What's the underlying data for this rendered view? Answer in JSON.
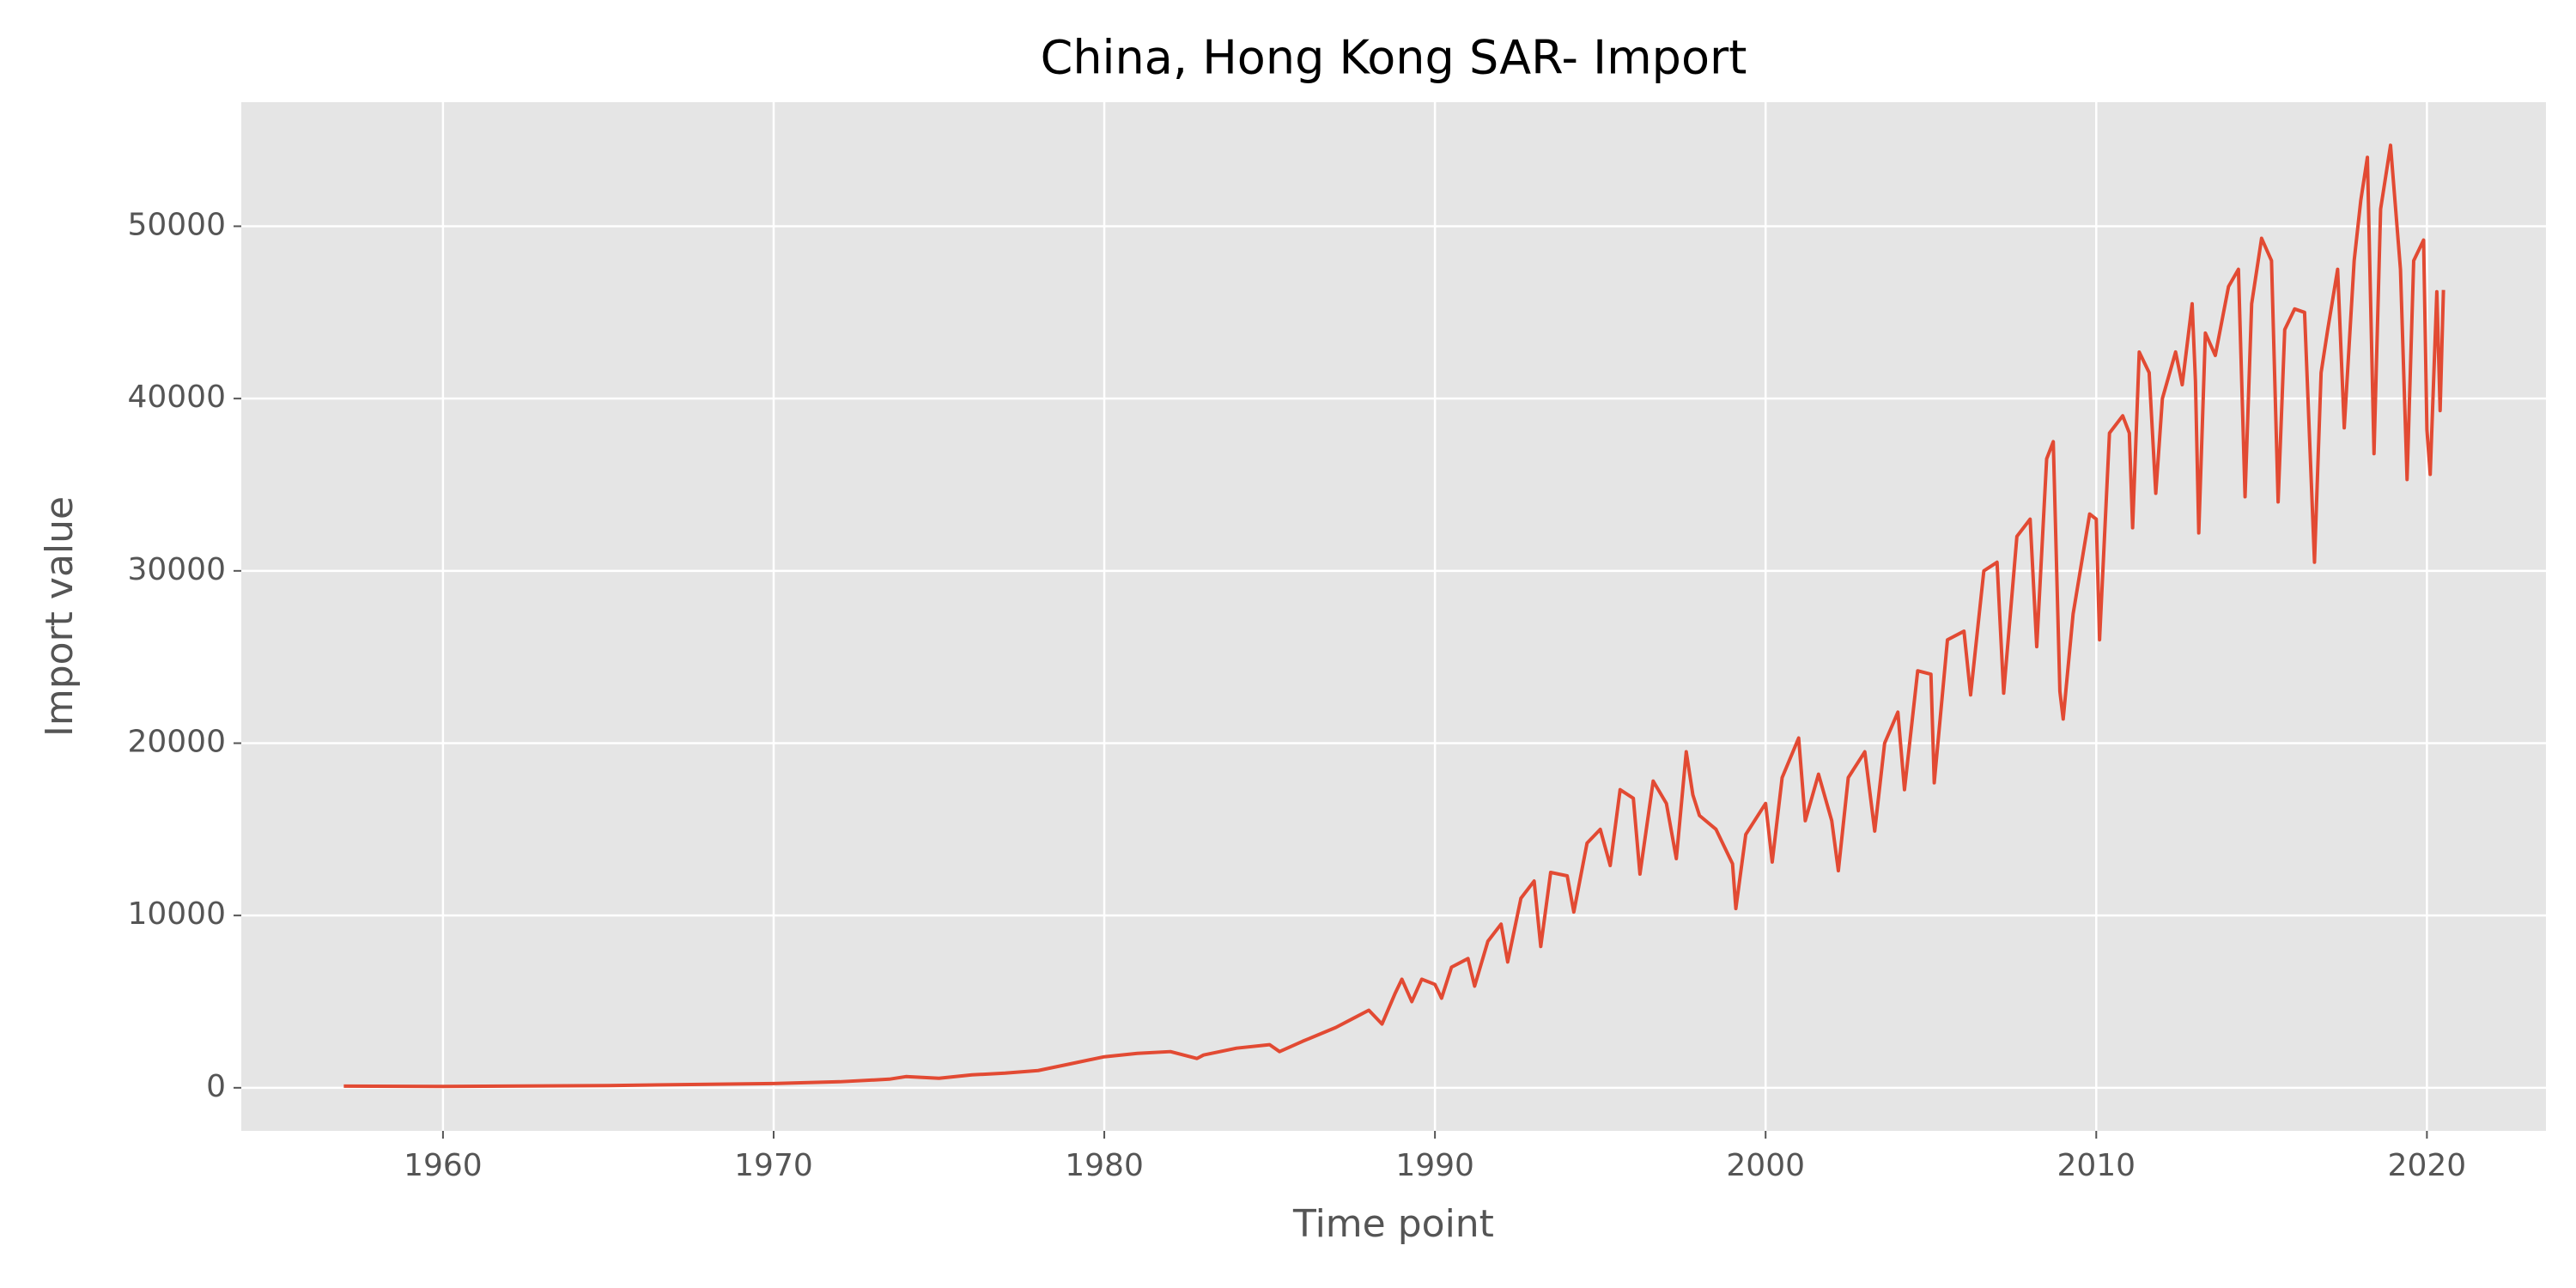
{
  "chart_data": {
    "type": "line",
    "title": "China, Hong Kong SAR- Import",
    "x_label": "Time point",
    "y_label": "Import value",
    "x": [
      1957,
      1960,
      1965,
      1970,
      1972,
      1973.5,
      1974,
      1975,
      1976,
      1977,
      1978,
      1979,
      1980,
      1981,
      1982,
      1982.8,
      1983,
      1984,
      1985,
      1985.3,
      1986,
      1987,
      1987.5,
      1988,
      1988.4,
      1988.8,
      1989,
      1989.3,
      1989.6,
      1990,
      1990.2,
      1990.5,
      1991,
      1991.2,
      1991.6,
      1992,
      1992.2,
      1992.6,
      1993,
      1993.2,
      1993.5,
      1994,
      1994.2,
      1994.6,
      1995,
      1995.3,
      1995.6,
      1996,
      1996.2,
      1996.6,
      1997,
      1997.3,
      1997.6,
      1997.8,
      1998,
      1998.5,
      1999,
      1999.1,
      1999.4,
      2000,
      2000.2,
      2000.5,
      2001,
      2001.2,
      2001.6,
      2002,
      2002.2,
      2002.5,
      2003,
      2003.3,
      2003.6,
      2004,
      2004.2,
      2004.6,
      2005,
      2005.1,
      2005.5,
      2006,
      2006.2,
      2006.6,
      2007,
      2007.2,
      2007.6,
      2008,
      2008.2,
      2008.5,
      2008.7,
      2008.9,
      2009,
      2009.3,
      2009.8,
      2010,
      2010.1,
      2010.4,
      2010.8,
      2011,
      2011.1,
      2011.3,
      2011.6,
      2011.8,
      2012,
      2012.4,
      2012.6,
      2012.9,
      2013,
      2013.1,
      2013.3,
      2013.6,
      2014,
      2014.3,
      2014.5,
      2014.7,
      2015,
      2015.3,
      2015.5,
      2015.7,
      2016,
      2016.3,
      2016.6,
      2016.8,
      2017,
      2017.3,
      2017.5,
      2017.8,
      2018,
      2018.2,
      2018.4,
      2018.6,
      2018.9,
      2019.2,
      2019.4,
      2019.6,
      2019.9,
      2020,
      2020.1,
      2020.3,
      2020.4,
      2020.5
    ],
    "series": [
      {
        "name": "Import",
        "color": "#e24a33",
        "values": [
          100,
          80,
          130,
          250,
          350,
          500,
          650,
          550,
          750,
          850,
          1000,
          1400,
          1800,
          2000,
          2100,
          1700,
          1900,
          2300,
          2500,
          2100,
          2700,
          3500,
          4000,
          4500,
          3700,
          5500,
          6300,
          5000,
          6300,
          6000,
          5200,
          7000,
          7500,
          5900,
          8500,
          9500,
          7300,
          11000,
          12000,
          8200,
          12500,
          12300,
          10200,
          14200,
          15000,
          12900,
          17300,
          16800,
          12400,
          17800,
          16500,
          13300,
          19500,
          17000,
          15800,
          15000,
          13000,
          10400,
          14700,
          16500,
          13100,
          18000,
          20300,
          15500,
          18200,
          15500,
          12600,
          18000,
          19500,
          14900,
          20000,
          21800,
          17300,
          24200,
          24000,
          17700,
          26000,
          26500,
          22800,
          30000,
          30500,
          22900,
          32000,
          33000,
          25600,
          36500,
          37500,
          23000,
          21400,
          27500,
          33300,
          33000,
          26000,
          38000,
          39000,
          38000,
          32500,
          42700,
          41500,
          34500,
          40000,
          42700,
          40800,
          45500,
          41000,
          32200,
          43800,
          42500,
          46500,
          47500,
          34300,
          45500,
          49300,
          48000,
          34000,
          44000,
          45200,
          45000,
          30500,
          41500,
          44000,
          47500,
          38300,
          48000,
          51500,
          54000,
          36800,
          51000,
          54700,
          47500,
          35300,
          48000,
          49200,
          38200,
          35600,
          46200,
          39300,
          46300
        ]
      }
    ],
    "xlim": [
      1953.9,
      2023.6
    ],
    "ylim": [
      -2500,
      57200
    ],
    "xticks": [
      1960,
      1970,
      1980,
      1990,
      2000,
      2010,
      2020
    ],
    "yticks": [
      0,
      10000,
      20000,
      30000,
      40000,
      50000
    ],
    "grid": true
  }
}
